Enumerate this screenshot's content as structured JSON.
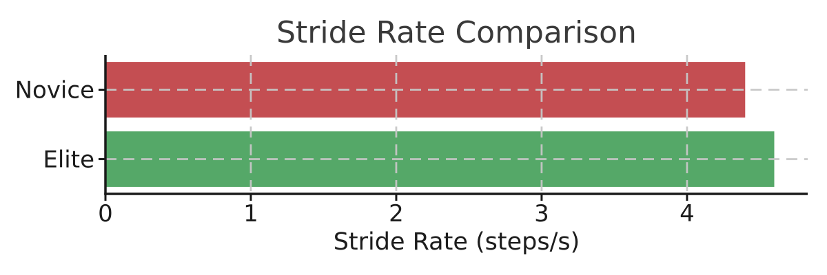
{
  "chart_data": {
    "type": "bar",
    "orientation": "horizontal",
    "title": "Stride Rate Comparison",
    "xlabel": "Stride Rate (steps/s)",
    "ylabel": "",
    "categories": [
      "Novice",
      "Elite"
    ],
    "values": [
      4.4,
      4.6
    ],
    "bar_colors": [
      "#c44e52",
      "#55a868"
    ],
    "xticks": [
      0,
      1,
      2,
      3,
      4
    ],
    "xlim": [
      0,
      4.83
    ],
    "ylim": [
      -0.5,
      1.5
    ],
    "bar_height_fraction": 0.8,
    "grid": "dashed",
    "grid_color": "#c6c6c6",
    "axis_color": "#1a1a1a",
    "text_color": "#1c1c1c",
    "title_color": "#3a3a3a",
    "legend": "none",
    "spines": [
      "left",
      "bottom"
    ]
  }
}
